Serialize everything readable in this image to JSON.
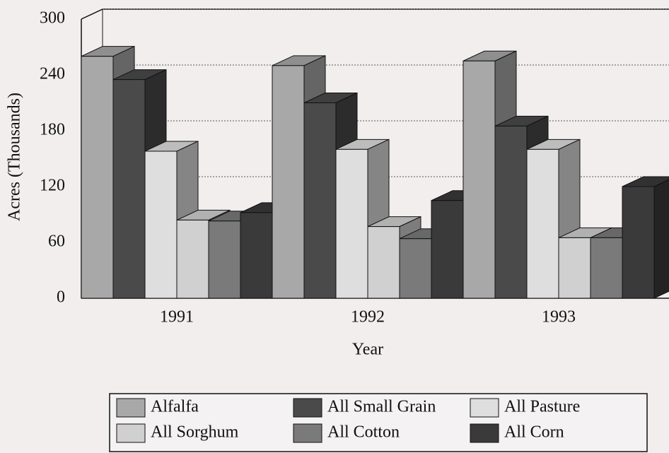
{
  "chart_data": {
    "type": "bar3d",
    "x_label": "Year",
    "y_label": "Acres (Thousands)",
    "categories": [
      "1991",
      "1992",
      "1993"
    ],
    "series": [
      {
        "name": "Alfalfa",
        "color": "#a8a8a8",
        "values": [
          260,
          250,
          255
        ]
      },
      {
        "name": "All Small Grain",
        "color": "#4a4a4a",
        "values": [
          235,
          210,
          185
        ]
      },
      {
        "name": "All Pasture",
        "color": "#dedede",
        "values": [
          158,
          160,
          160
        ]
      },
      {
        "name": "All Sorghum",
        "color": "#d0d0d0",
        "values": [
          84,
          77,
          65
        ]
      },
      {
        "name": "All Cotton",
        "color": "#7a7a7a",
        "values": [
          83,
          64,
          65
        ]
      },
      {
        "name": "All Corn",
        "color": "#3a3a3a",
        "values": [
          92,
          105,
          120
        ]
      }
    ],
    "ylim": [
      0,
      300
    ],
    "yticks": [
      0,
      60,
      120,
      180,
      240,
      300
    ],
    "grid": true
  }
}
